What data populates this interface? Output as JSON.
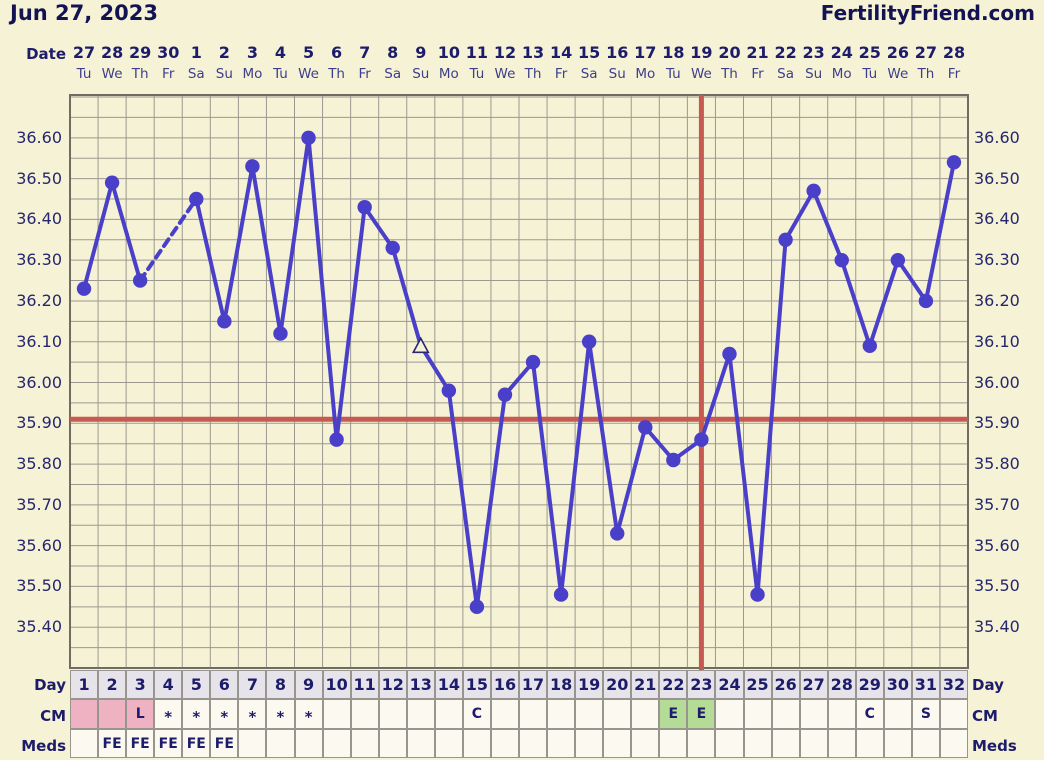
{
  "header": {
    "title": "Jun 27, 2023",
    "brand": "FertilityFriend.com"
  },
  "axis": {
    "date_label": "Date",
    "dates": [
      "27",
      "28",
      "29",
      "30",
      "1",
      "2",
      "3",
      "4",
      "5",
      "6",
      "7",
      "8",
      "9",
      "10",
      "11",
      "12",
      "13",
      "14",
      "15",
      "16",
      "17",
      "18",
      "19",
      "20",
      "21",
      "22",
      "23",
      "24",
      "25",
      "26",
      "27",
      "28"
    ],
    "weekdays": [
      "Tu",
      "We",
      "Th",
      "Fr",
      "Sa",
      "Su",
      "Mo",
      "Tu",
      "We",
      "Th",
      "Fr",
      "Sa",
      "Su",
      "Mo",
      "Tu",
      "We",
      "Th",
      "Fr",
      "Sa",
      "Su",
      "Mo",
      "Tu",
      "We",
      "Th",
      "Fr",
      "Sa",
      "Su",
      "Mo",
      "Tu",
      "We",
      "Th",
      "Fr"
    ]
  },
  "chart_data": {
    "type": "line",
    "x_days": [
      1,
      2,
      3,
      4,
      5,
      6,
      7,
      8,
      9,
      10,
      11,
      12,
      13,
      14,
      15,
      16,
      17,
      18,
      19,
      20,
      21,
      22,
      23,
      24,
      25,
      26,
      27,
      28,
      29,
      30,
      31,
      32
    ],
    "temps": [
      36.23,
      36.49,
      36.25,
      null,
      36.45,
      36.15,
      36.53,
      36.12,
      36.6,
      35.86,
      36.43,
      36.33,
      36.09,
      35.98,
      35.45,
      35.97,
      36.05,
      35.48,
      36.1,
      35.63,
      35.89,
      35.81,
      35.86,
      36.07,
      35.48,
      36.35,
      36.47,
      36.3,
      36.09,
      36.3,
      36.2,
      36.54
    ],
    "missing_days": [
      4
    ],
    "excluded_days": [
      13
    ],
    "coverline_temp": 35.91,
    "ovulation_line_day": 23,
    "ylim": [
      35.3,
      36.705
    ],
    "y_tick_labels": [
      "36.60",
      "36.50",
      "36.40",
      "36.30",
      "36.20",
      "36.10",
      "36.00",
      "35.90",
      "35.80",
      "35.70",
      "35.60",
      "35.50",
      "35.40"
    ],
    "y_minor_step": 0.05,
    "grid": true,
    "legend": "none",
    "colors": {
      "line": "#4a3fc8",
      "marker": "#4a3fc8",
      "excluded_marker_fill": "#f4f0dc",
      "excluded_marker_stroke": "#2a2a6a",
      "red_lines": "#c65a50",
      "grid": "#9b998f",
      "plot_border": "#6e6c63",
      "background": "#f6f2d6"
    }
  },
  "table": {
    "rows": [
      {
        "label": "Day",
        "kind": "hdr",
        "cells": [
          "1",
          "2",
          "3",
          "4",
          "5",
          "6",
          "7",
          "8",
          "9",
          "10",
          "11",
          "12",
          "13",
          "14",
          "15",
          "16",
          "17",
          "18",
          "19",
          "20",
          "21",
          "22",
          "23",
          "24",
          "25",
          "26",
          "27",
          "28",
          "29",
          "30",
          "31",
          "32"
        ]
      },
      {
        "label": "CM",
        "kind": "cm",
        "cells": [
          "",
          "",
          "L",
          "*",
          "*",
          "*",
          "*",
          "*",
          "*",
          "",
          "",
          "",
          "",
          "",
          "C",
          "",
          "",
          "",
          "",
          "",
          "",
          "E",
          "E",
          "",
          "",
          "",
          "",
          "",
          "C",
          "",
          "S",
          ""
        ]
      },
      {
        "label": "Meds",
        "kind": "meds",
        "cells": [
          "",
          "FE",
          "FE",
          "FE",
          "FE",
          "FE",
          "",
          "",
          "",
          "",
          "",
          "",
          "",
          "",
          "",
          "",
          "",
          "",
          "",
          "",
          "",
          "",
          "",
          "",
          "",
          "",
          "",
          "",
          "",
          "",
          "",
          ""
        ]
      }
    ],
    "cm_pink_days": [
      1,
      2,
      3
    ],
    "cm_green_days": [
      22,
      23
    ]
  }
}
